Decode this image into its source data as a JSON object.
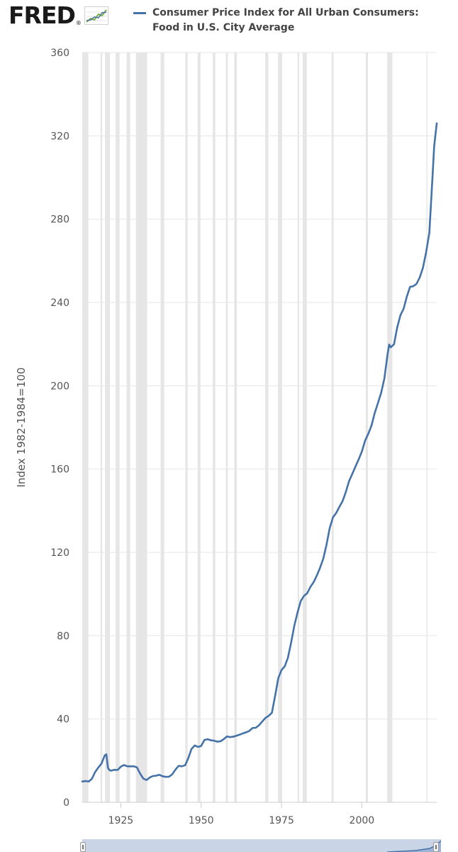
{
  "logo": {
    "text": "FRED",
    "registered_mark": "®",
    "icon": "fred-trend-icon"
  },
  "colors": {
    "series_line": "#4572a7",
    "recession_shade": "#e6e6e6",
    "gridline": "#e6e6e6",
    "navigator_fill": "#c9d4e6"
  },
  "chart_data": {
    "type": "line",
    "title": "",
    "xlabel": "",
    "ylabel": "Index 1982-1984=100",
    "xlim": [
      1913,
      2023.3
    ],
    "ylim": [
      0,
      360
    ],
    "yticks": [
      0,
      40,
      80,
      120,
      160,
      200,
      240,
      280,
      320,
      360
    ],
    "xticks": [
      1925,
      1950,
      1975,
      2000
    ],
    "grid": true,
    "legend_position": "top",
    "recessions": [
      [
        1913.0,
        1914.9
      ],
      [
        1918.7,
        1919.2
      ],
      [
        1920.1,
        1921.6
      ],
      [
        1923.4,
        1924.6
      ],
      [
        1926.8,
        1927.9
      ],
      [
        1929.7,
        1933.2
      ],
      [
        1937.4,
        1938.5
      ],
      [
        1945.1,
        1945.8
      ],
      [
        1948.9,
        1949.8
      ],
      [
        1953.6,
        1954.4
      ],
      [
        1957.7,
        1958.3
      ],
      [
        1960.3,
        1961.1
      ],
      [
        1969.9,
        1970.9
      ],
      [
        1973.9,
        1975.2
      ],
      [
        1980.0,
        1980.5
      ],
      [
        1981.6,
        1982.9
      ],
      [
        1990.6,
        1991.2
      ],
      [
        2001.2,
        2001.9
      ],
      [
        2007.9,
        2009.5
      ],
      [
        2020.1,
        2020.4
      ]
    ],
    "series": [
      {
        "name": "Consumer Price Index for All Urban Consumers: Food in U.S. City Average",
        "x": [
          1913,
          1914,
          1915,
          1916,
          1917,
          1918,
          1919,
          1920,
          1920.5,
          1921,
          1921.5,
          1922,
          1923,
          1924,
          1925,
          1926,
          1927,
          1928,
          1929,
          1930,
          1931,
          1932,
          1933,
          1934,
          1935,
          1936,
          1937,
          1938,
          1939,
          1940,
          1941,
          1942,
          1943,
          1944,
          1945,
          1946,
          1947,
          1948,
          1949,
          1950,
          1951,
          1952,
          1953,
          1954,
          1955,
          1956,
          1957,
          1958,
          1959,
          1960,
          1961,
          1962,
          1963,
          1964,
          1965,
          1966,
          1967,
          1968,
          1969,
          1970,
          1971,
          1972,
          1973,
          1974,
          1975,
          1976,
          1977,
          1978,
          1979,
          1980,
          1981,
          1982,
          1983,
          1984,
          1985,
          1986,
          1987,
          1988,
          1989,
          1990,
          1991,
          1992,
          1993,
          1994,
          1995,
          1996,
          1997,
          1998,
          1999,
          2000,
          2001,
          2002,
          2003,
          2004,
          2005,
          2006,
          2007,
          2008,
          2008.5,
          2009,
          2010,
          2011,
          2012,
          2013,
          2014,
          2015,
          2016,
          2017,
          2018,
          2019,
          2020,
          2021,
          2022,
          2022.5,
          2023.3
        ],
        "values": [
          10.0,
          10.2,
          10.0,
          11.3,
          14.5,
          16.7,
          18.6,
          22.5,
          23.0,
          16.5,
          15.4,
          15.2,
          15.6,
          15.5,
          17.1,
          17.9,
          17.3,
          17.3,
          17.3,
          16.8,
          13.8,
          11.4,
          10.7,
          11.9,
          12.6,
          12.8,
          13.2,
          12.5,
          12.2,
          12.3,
          13.4,
          15.7,
          17.5,
          17.3,
          17.8,
          21.2,
          25.6,
          27.3,
          26.6,
          27.0,
          29.9,
          30.3,
          29.8,
          29.6,
          29.1,
          29.3,
          30.3,
          31.6,
          31.3,
          31.5,
          32.0,
          32.5,
          33.1,
          33.6,
          34.3,
          35.7,
          35.8,
          37.0,
          38.8,
          40.5,
          41.5,
          43.0,
          51.0,
          59.6,
          63.5,
          65.3,
          69.4,
          76.8,
          84.9,
          91.2,
          96.7,
          99.1,
          100.4,
          103.4,
          105.7,
          108.9,
          112.6,
          117.0,
          123.6,
          131.6,
          136.8,
          138.9,
          141.8,
          144.6,
          148.9,
          154.1,
          157.6,
          161.1,
          164.6,
          168.4,
          173.6,
          176.9,
          180.9,
          186.9,
          191.6,
          196.6,
          203.4,
          215.0,
          219.8,
          218.5,
          219.9,
          227.9,
          233.9,
          237.0,
          242.8,
          247.5,
          247.8,
          248.9,
          252.0,
          256.6,
          264.0,
          273.5,
          300.7,
          315.0,
          326.0
        ]
      }
    ]
  }
}
